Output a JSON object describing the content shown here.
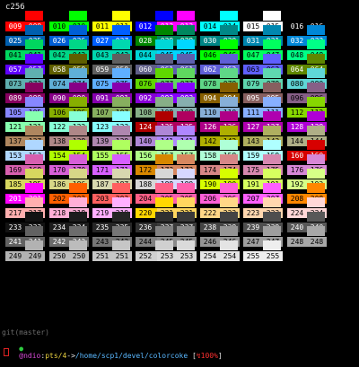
{
  "window_title": "c256",
  "git_line": "git(master)",
  "prompt": {
    "bullet": "●",
    "user_host": "@ndio",
    "sep1": ":",
    "tty": "pts/4",
    "sep2": "->",
    "path": "/home/scp1/devel/colorcoke",
    "bracket_open": " [",
    "percent_icon": "↯",
    "percent": "100%",
    "bracket_close": "]"
  },
  "palette": {
    "columns": 17,
    "rows": [
      [
        "009",
        "010",
        "011",
        "012",
        "013",
        "014",
        "015",
        "016"
      ],
      [
        "025",
        "026",
        "027",
        "028",
        "029",
        "030",
        "031",
        "032"
      ],
      [
        "041",
        "042",
        "043",
        "044",
        "045",
        "046",
        "047",
        "048"
      ],
      [
        "057",
        "058",
        "059",
        "060",
        "061",
        "062",
        "063",
        "064"
      ],
      [
        "073",
        "074",
        "075",
        "076",
        "077",
        "078",
        "079",
        "080"
      ],
      [
        "089",
        "090",
        "091",
        "092",
        "093",
        "094",
        "095",
        "096"
      ],
      [
        "105",
        "106",
        "107",
        "108",
        "109",
        "110",
        "111",
        "112"
      ]
    ]
  },
  "grid_labels": [
    [
      "009",
      "",
      "010",
      "",
      "011",
      "",
      "012",
      "013",
      "",
      "014",
      "",
      "015",
      "",
      "016",
      ""
    ],
    [
      "025",
      "",
      "026",
      "",
      "027",
      "",
      "028",
      "029",
      "",
      "030",
      "",
      "031",
      "",
      "032",
      ""
    ],
    [
      "041",
      "",
      "042",
      "",
      "043",
      "",
      "044",
      "045",
      "",
      "046",
      "",
      "047",
      "",
      "048",
      ""
    ],
    [
      "057",
      "",
      "058",
      "",
      "059",
      "",
      "060",
      "061",
      "",
      "062",
      "",
      "063",
      "",
      "064",
      ""
    ],
    [
      "073",
      "",
      "074",
      "",
      "075",
      "",
      "076",
      "077",
      "",
      "078",
      "",
      "079",
      "",
      "080",
      ""
    ],
    [
      "089",
      "",
      "090",
      "",
      "091",
      "",
      "092",
      "093",
      "",
      "094",
      "",
      "095",
      "",
      "096",
      ""
    ],
    [
      "105",
      "",
      "106",
      "",
      "107",
      "",
      "108",
      "109",
      "",
      "110",
      "",
      "111",
      "",
      "112",
      ""
    ],
    [
      "121",
      "",
      "122",
      "",
      "123",
      "",
      "124",
      "125",
      "",
      "126",
      "",
      "127",
      "",
      "128",
      ""
    ],
    [
      "137",
      "",
      "138",
      "",
      "139",
      "",
      "140",
      "141",
      "",
      "142",
      "",
      "143",
      "",
      "144",
      ""
    ],
    [
      "153",
      "",
      "154",
      "",
      "155",
      "",
      "156",
      "157",
      "",
      "158",
      "",
      "159",
      "",
      "160",
      ""
    ],
    [
      "169",
      "",
      "170",
      "",
      "171",
      "",
      "172",
      "173",
      "",
      "174",
      "",
      "175",
      "",
      "176",
      ""
    ],
    [
      "185",
      "",
      "186",
      "",
      "187",
      "",
      "188",
      "189",
      "",
      "190",
      "",
      "191",
      "",
      "192",
      ""
    ],
    [
      "201",
      "",
      "202",
      "",
      "203",
      "",
      "204",
      "205",
      "",
      "206",
      "",
      "207",
      "",
      "208",
      ""
    ],
    [
      "217",
      "",
      "218",
      "",
      "219",
      "",
      "220",
      "221",
      "",
      "222",
      "",
      "223",
      "",
      "224",
      ""
    ],
    [
      "233",
      "",
      "234",
      "",
      "235",
      "",
      "236",
      "237",
      "",
      "238",
      "",
      "239",
      "",
      "240",
      ""
    ],
    [
      "241",
      "",
      "242",
      "",
      "243",
      "",
      "244",
      "245",
      "",
      "246",
      "",
      "247",
      "",
      "248",
      ""
    ],
    [
      "249",
      "",
      "250",
      "",
      "251",
      "",
      "252",
      "253",
      "",
      "254",
      "",
      "255",
      "",
      "",
      ""
    ]
  ],
  "colors": {
    "bg": "#000000",
    "prompt_bullet": "#2ecc40",
    "prompt_userhost": "#d64ad6",
    "prompt_tty": "#e8d040",
    "prompt_path": "#5ab8ff",
    "prompt_percent": "#ff3030",
    "cursor": "#dd2222"
  }
}
